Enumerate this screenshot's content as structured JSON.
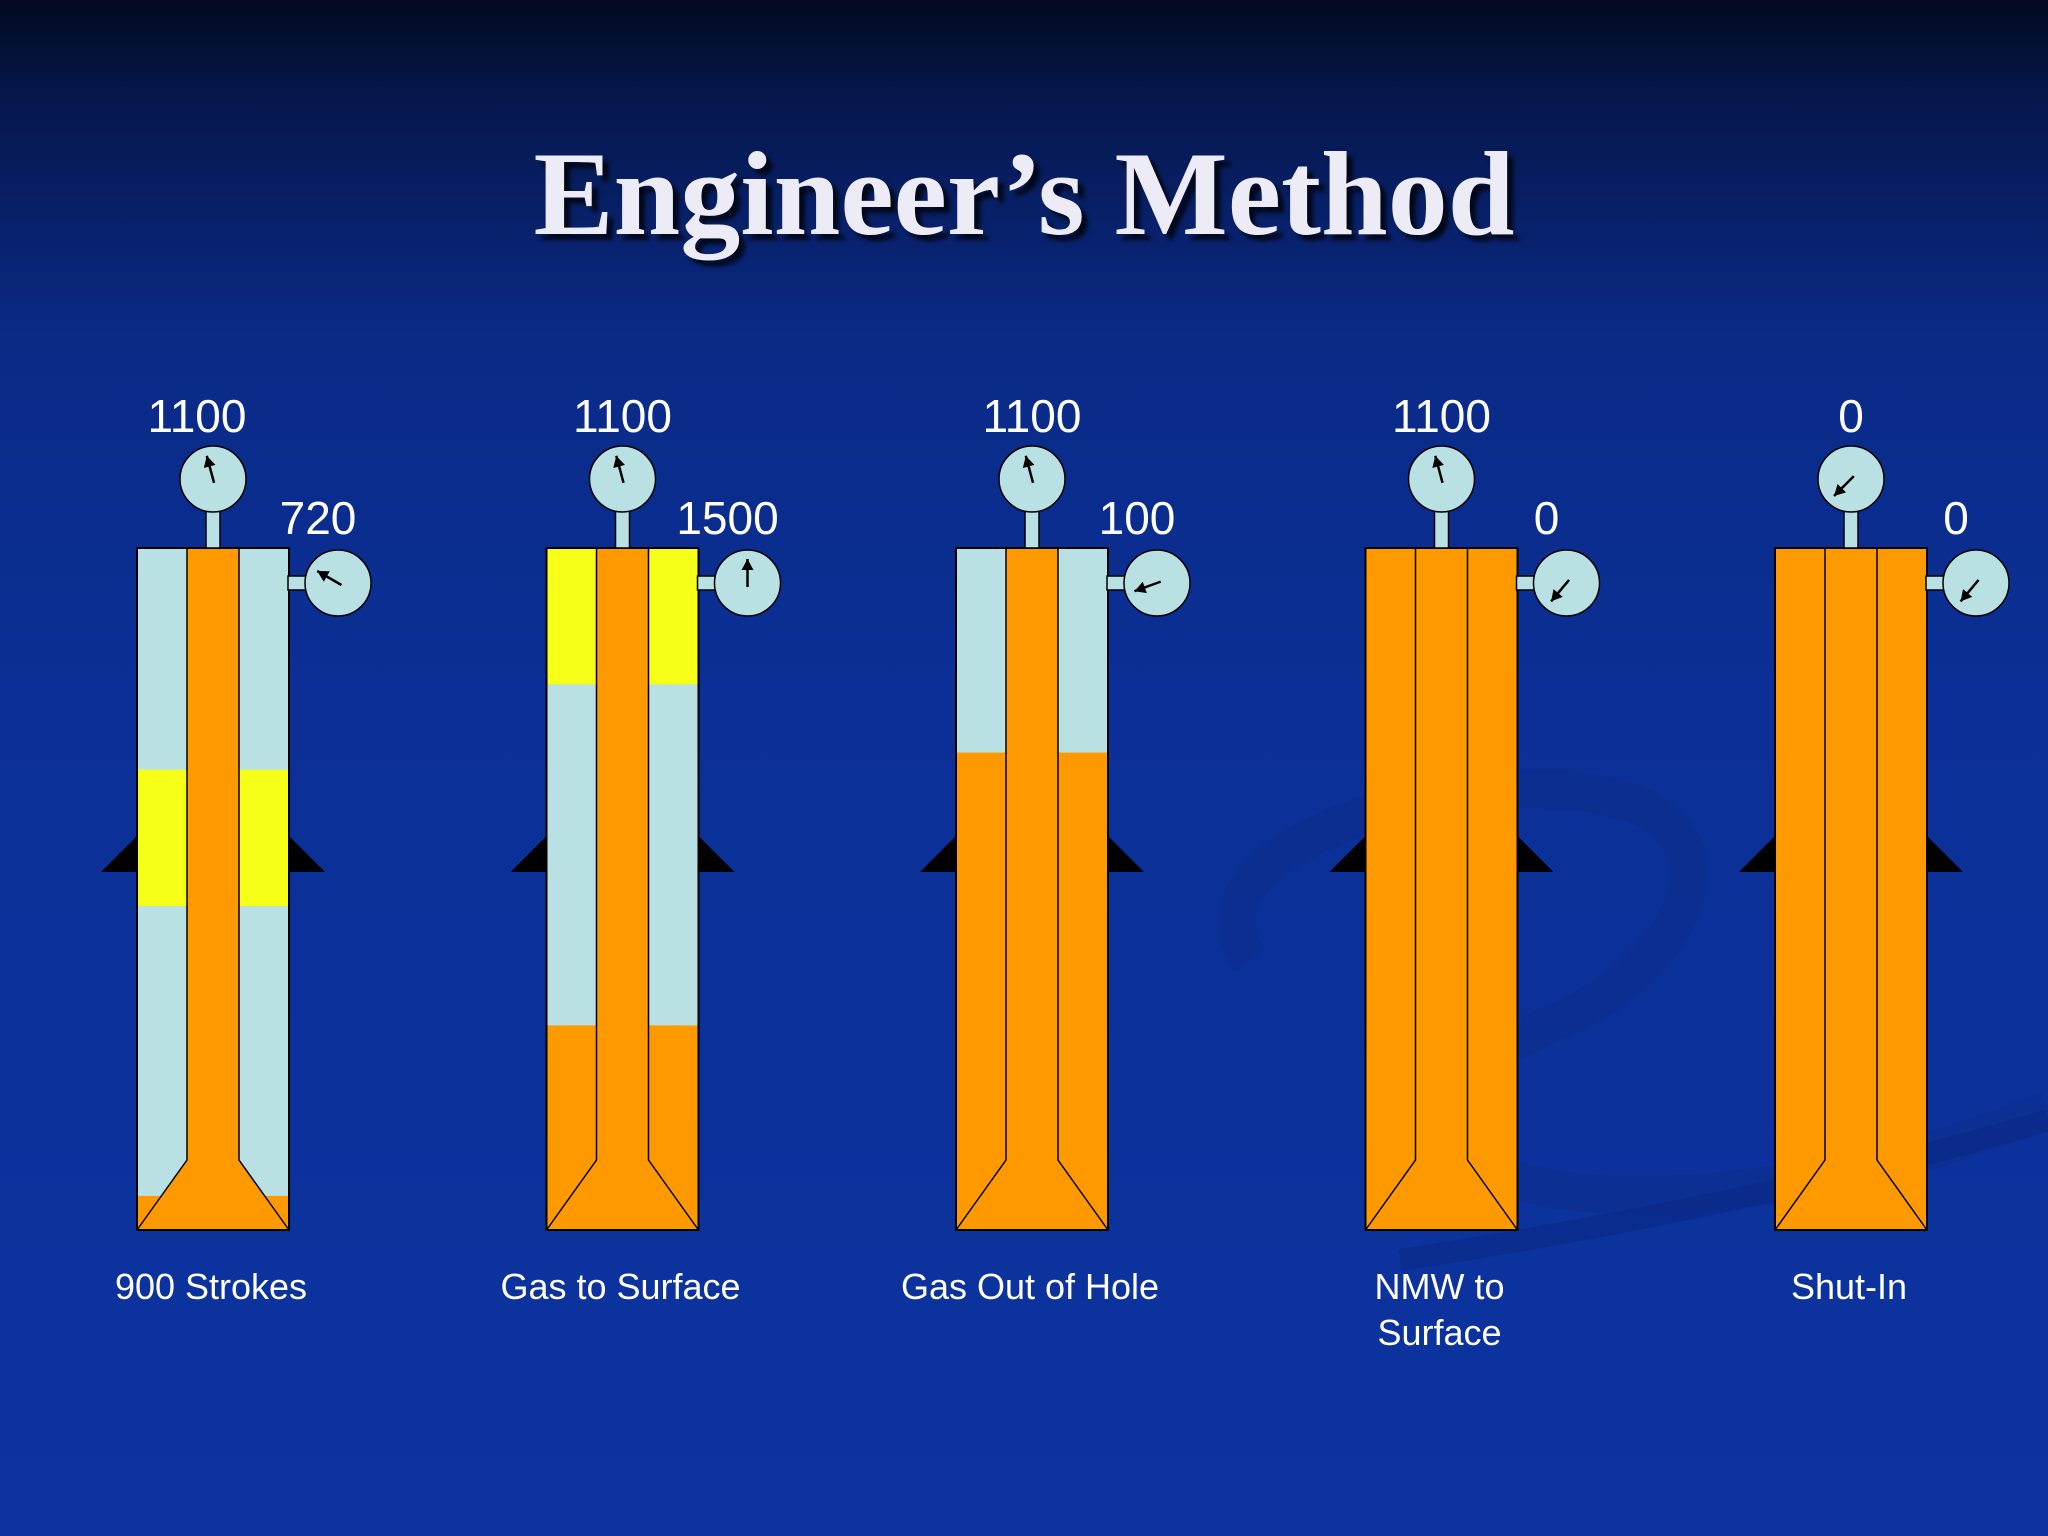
{
  "slide": {
    "title": "Engineer’s Method"
  },
  "colors": {
    "mud_original": "#b9e0e2",
    "mud_kill": "#ff9900",
    "gas": "#f5ff17",
    "gauge_face": "#b9e0e2",
    "text": "#ffffff"
  },
  "stages": [
    {
      "label": "900 Strokes",
      "label_lines": [
        "900 Strokes"
      ],
      "drillpipe_pressure": "1100",
      "casing_pressure": "720",
      "annulus_kill_fraction": 0.05,
      "drillpipe_kill": true,
      "gas_zone": [
        0.325,
        0.525
      ]
    },
    {
      "label": "Gas to Surface",
      "label_lines": [
        "Gas to Surface"
      ],
      "drillpipe_pressure": "1100",
      "casing_pressure": "1500",
      "annulus_kill_fraction": 0.3,
      "drillpipe_kill": true,
      "gas_zone": [
        0.0,
        0.2
      ]
    },
    {
      "label": "Gas Out of Hole",
      "label_lines": [
        "Gas Out of Hole"
      ],
      "drillpipe_pressure": "1100",
      "casing_pressure": "100",
      "annulus_kill_fraction": 0.7,
      "drillpipe_kill": true,
      "gas_zone": null
    },
    {
      "label": "NMW to Surface",
      "label_lines": [
        "NMW to",
        "Surface"
      ],
      "drillpipe_pressure": "1100",
      "casing_pressure": "0",
      "annulus_kill_fraction": 1.0,
      "drillpipe_kill": true,
      "gas_zone": null
    },
    {
      "label": "Shut-In",
      "label_lines": [
        "Shut-In"
      ],
      "drillpipe_pressure": "0",
      "casing_pressure": "0",
      "annulus_kill_fraction": 1.0,
      "drillpipe_kill": true,
      "gas_zone": null
    }
  ]
}
